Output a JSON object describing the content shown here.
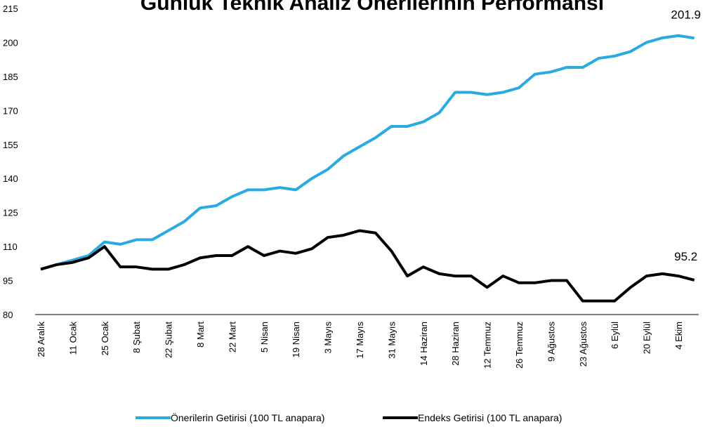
{
  "chart_data": {
    "type": "line",
    "title": "Günlük Teknik Analiz Önerilerinin Performansı",
    "categories": [
      "28 Aralık",
      null,
      "11 Ocak",
      null,
      "25 Ocak",
      null,
      "8 Şubat",
      null,
      "22 Şubat",
      null,
      "8 Mart",
      null,
      "22 Mart",
      null,
      "5 Nisan",
      null,
      "19 Nisan",
      null,
      "3 Mayıs",
      null,
      "17 Mayıs",
      null,
      "31 Mayıs",
      null,
      "14 Haziran",
      null,
      "28 Haziran",
      null,
      "12 Temmuz",
      null,
      "26 Temmuz",
      null,
      "9 Ağustos",
      null,
      "23 Ağustos",
      null,
      "6 Eylül",
      null,
      "20 Eylül",
      null,
      "4 Ekim",
      null
    ],
    "series": [
      {
        "name": "Önerilerin Getirisi (100 TL anapara)",
        "color": "#29abe2",
        "values": [
          100,
          102,
          104,
          106,
          112,
          111,
          113,
          113,
          117,
          121,
          127,
          128,
          132,
          135,
          135,
          136,
          135,
          140,
          144,
          150,
          154,
          158,
          163,
          163,
          165,
          169,
          178,
          178,
          177,
          178,
          180,
          186,
          187,
          189,
          189,
          193,
          194,
          196,
          200,
          202,
          203,
          201.9
        ]
      },
      {
        "name": "Endeks Getirisi (100 TL anapara)",
        "color": "#000000",
        "values": [
          100,
          102,
          103,
          105,
          110,
          101,
          101,
          100,
          100,
          102,
          105,
          106,
          106,
          110,
          106,
          108,
          107,
          109,
          114,
          115,
          117,
          116,
          108,
          97,
          101,
          98,
          97,
          97,
          92,
          97,
          94,
          94,
          95,
          95,
          86,
          86,
          86,
          92,
          97,
          98,
          97,
          95.2
        ]
      }
    ],
    "ylim": [
      80,
      215
    ],
    "yticks": [
      80,
      95,
      110,
      125,
      140,
      155,
      170,
      185,
      200,
      215
    ],
    "grid": false,
    "legend": "bottom"
  }
}
